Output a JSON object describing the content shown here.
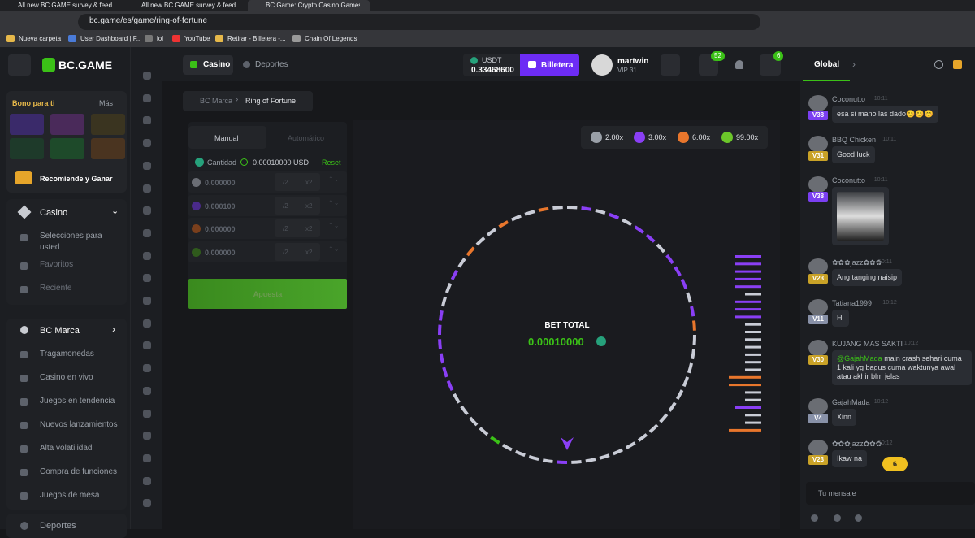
{
  "browser": {
    "tabs": [
      "All new BC.GAME survey & feedback",
      "All new BC.GAME survey & feedback",
      "BC.Game: Crypto Casino Games &"
    ],
    "url": "bc.game/es/game/ring-of-fortune",
    "bookmarks": [
      "Nueva carpeta",
      "User Dashboard | F...",
      "lol",
      "YouTube",
      "Retirar - Billetera -...",
      "Chain Of Legends"
    ]
  },
  "sidebar": {
    "logo": "BC.GAME",
    "bonus_title": "Bono para ti",
    "bonus_more": "Más",
    "refer": "Recomiende y Ganar",
    "casino": "Casino",
    "casino_items": [
      "Selecciones para usted",
      "Favoritos",
      "Reciente"
    ],
    "brand": "BC Marca",
    "brand_items": [
      "Tragamonedas",
      "Casino en vivo",
      "Juegos en tendencia",
      "Nuevos lanzamientos",
      "Alta volatilidad",
      "Compra de funciones",
      "Juegos de mesa"
    ],
    "sports": "Deportes"
  },
  "header": {
    "casino": "Casino",
    "sports": "Deportes",
    "currency": "USDT",
    "balance": "0.33468600",
    "wallet": "Billetera",
    "user": "martwin",
    "vip": "VIP 31",
    "mail_badge": "52",
    "chat_badge": "6"
  },
  "breadcrumb": [
    "BC Marca",
    "Ring of Fortune"
  ],
  "bet_panel": {
    "tabs": [
      "Manual",
      "Automático"
    ],
    "amount_label": "Cantidad",
    "amount": "0.00010000 USD",
    "reset": "Reset",
    "rows": [
      {
        "value": "0.000000",
        "half": "/2",
        "double": "x2",
        "color": "#6b6e75"
      },
      {
        "value": "0.000100",
        "half": "/2",
        "double": "x2",
        "color": "#4a2a8a"
      },
      {
        "value": "0.000000",
        "half": "/2",
        "double": "x2",
        "color": "#7a3f1c"
      },
      {
        "value": "0.000000",
        "half": "/2",
        "double": "x2",
        "color": "#2f5a1c"
      }
    ],
    "button": "Apuesta"
  },
  "game": {
    "multipliers": [
      {
        "label": "2.00x",
        "color": "#9aa0a8"
      },
      {
        "label": "3.00x",
        "color": "#8a3ff5"
      },
      {
        "label": "6.00x",
        "color": "#e8762c"
      },
      {
        "label": "99.00x",
        "color": "#6cc62a"
      }
    ],
    "bet_total_label": "BET TOTAL",
    "bet_total": "0.00010000"
  },
  "chat": {
    "tab": "Global",
    "messages": [
      {
        "user": "Coconutto",
        "time": "10:11",
        "vip": "V38",
        "vip_color": "#7b3ff2",
        "text": "esa si mano las dado😊😊😊"
      },
      {
        "user": "BBQ Chicken",
        "time": "10:11",
        "vip": "V31",
        "vip_color": "#c9a227",
        "text": "Good luck"
      },
      {
        "user": "Coconutto",
        "time": "10:11",
        "vip": "V38",
        "vip_color": "#7b3ff2"
      },
      {
        "user": "✿✿✿jazz✿✿✿",
        "time": "10:11",
        "vip": "V23",
        "vip_color": "#c9a227",
        "text": "Ang tanging naisip"
      },
      {
        "user": "Tatiana1999",
        "time": "10:12",
        "vip": "V11",
        "vip_color": "#8891a8",
        "text": "Hi"
      },
      {
        "user": "KUJANG MAS SAKTI",
        "time": "10:12",
        "vip": "V30",
        "vip_color": "#c9a227",
        "mention": "@GajahMada",
        "text": "main crash sehari cuma 1 kali yg bagus cuma waktunya awal atau akhir blm jelas"
      },
      {
        "user": "GajahMada",
        "time": "10:12",
        "vip": "V4",
        "vip_color": "#8891a8",
        "text": "Xinn"
      },
      {
        "user": "✿✿✿jazz✿✿✿",
        "time": "10:12",
        "vip": "V23",
        "vip_color": "#c9a227",
        "text": "Ikaw na"
      }
    ],
    "new_badge": "6",
    "input_placeholder": "Tu mensaje"
  }
}
